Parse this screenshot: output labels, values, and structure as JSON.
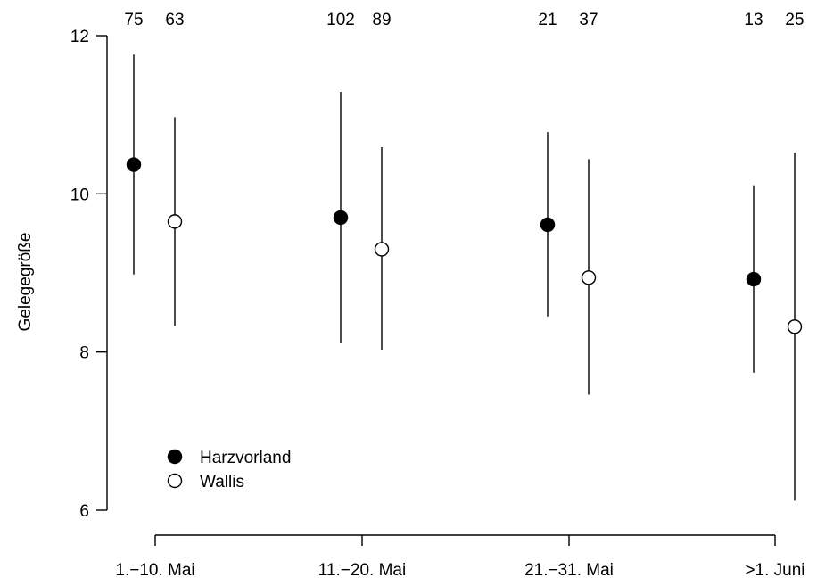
{
  "chart_data": {
    "type": "scatter",
    "title": "",
    "xlabel": "",
    "ylabel": "Gelegegröße",
    "ylim": [
      6,
      12
    ],
    "yticks": [
      6,
      8,
      10,
      12
    ],
    "categories": [
      "1.−10. Mai",
      "11.−20. Mai",
      "21.−31. Mai",
      ">1. Juni"
    ],
    "grid": false,
    "legend_position": "bottom-left",
    "series": [
      {
        "name": "Harzvorland",
        "marker": "filled-circle",
        "color": "#000000",
        "values": [
          10.37,
          9.7,
          9.61,
          8.92
        ],
        "lower": [
          8.98,
          8.12,
          8.45,
          7.74
        ],
        "upper": [
          11.76,
          11.29,
          10.78,
          10.11
        ],
        "n": [
          "75",
          "102",
          "21",
          "13"
        ]
      },
      {
        "name": "Wallis",
        "marker": "open-circle",
        "color": "#000000",
        "values": [
          9.65,
          9.3,
          8.94,
          8.32
        ],
        "lower": [
          8.33,
          8.03,
          7.46,
          6.12
        ],
        "upper": [
          10.97,
          10.59,
          10.44,
          10.52
        ],
        "n": [
          "63",
          "89",
          "37",
          "25"
        ]
      }
    ]
  }
}
